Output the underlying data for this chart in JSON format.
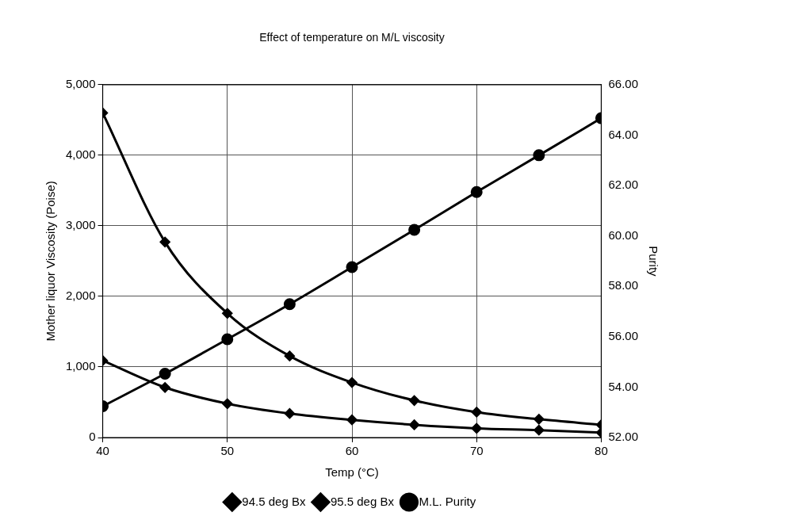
{
  "chart_data": {
    "type": "line",
    "title": "Effect of temperature on M/L viscosity",
    "xlabel": "Temp (°C)",
    "ylabel": "Mother liquor Viscosity (Poise)",
    "y2label": "Purity",
    "x": [
      40,
      45,
      50,
      55,
      60,
      65,
      70,
      75,
      80
    ],
    "series": [
      {
        "name": "94.5 deg Bx",
        "color": "#000000",
        "marker": "diamond",
        "values": [
          1090,
          710,
          480,
          340,
          250,
          180,
          130,
          105,
          70
        ]
      },
      {
        "name": "95.5 deg Bx",
        "color": "#000000",
        "marker": "diamond",
        "values": [
          4600,
          2770,
          1760,
          1155,
          780,
          525,
          360,
          260,
          180
        ]
      },
      {
        "name": "M.L. Purity",
        "color": "#000000",
        "marker": "circle",
        "axis": "y2",
        "values": [
          53.24,
          54.53,
          55.9,
          57.29,
          58.76,
          60.24,
          61.74,
          63.2,
          64.67
        ]
      }
    ],
    "xlim": [
      40,
      80
    ],
    "xticks": [
      40,
      50,
      60,
      70,
      80
    ],
    "ylim": [
      0,
      5000
    ],
    "yticks": [
      {
        "value": 0,
        "label": "0"
      },
      {
        "value": 1000,
        "label": "1,000"
      },
      {
        "value": 2000,
        "label": "2,000"
      },
      {
        "value": 3000,
        "label": "3,000"
      },
      {
        "value": 4000,
        "label": "4,000"
      },
      {
        "value": 5000,
        "label": "5,000"
      }
    ],
    "y2lim": [
      52,
      66
    ],
    "y2ticks": [
      {
        "value": 52,
        "label": "52.00"
      },
      {
        "value": 54,
        "label": "54.00"
      },
      {
        "value": 56,
        "label": "56.00"
      },
      {
        "value": 58,
        "label": "58.00"
      },
      {
        "value": 60,
        "label": "60.00"
      },
      {
        "value": 62,
        "label": "62.00"
      },
      {
        "value": 64,
        "label": "64.00"
      },
      {
        "value": 66,
        "label": "66.00"
      }
    ],
    "grid": true,
    "legend": "bottom",
    "line_style": "solid"
  }
}
